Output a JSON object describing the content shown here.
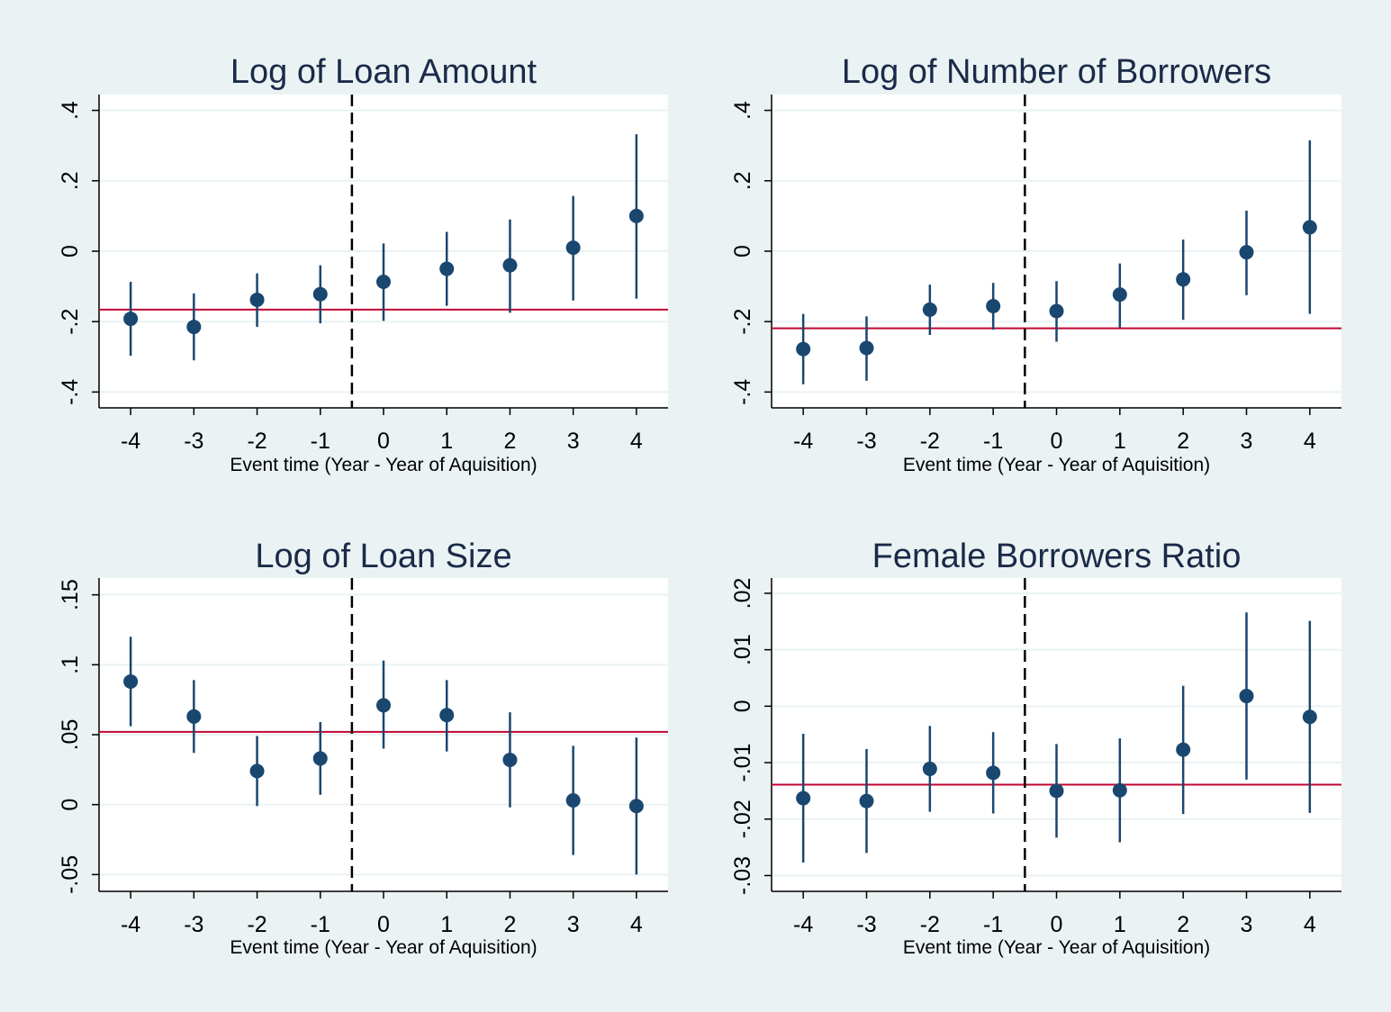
{
  "style": {
    "background": "#eaf2f3",
    "plot_background": "#ffffff",
    "grid_color": "#eaf2f3",
    "marker_color": "#1a476f",
    "reference_line_color": "#c10534",
    "title_color": "#1a2a48"
  },
  "chart_data": [
    {
      "type": "scatter",
      "title": "Log of Loan Amount",
      "xlabel": "Event time (Year - Year of Aquisition)",
      "ylabel": "",
      "x": [
        -4,
        -3,
        -2,
        -1,
        0,
        1,
        2,
        3,
        4
      ],
      "xticks": [
        "-4",
        "-3",
        "-2",
        "-1",
        "0",
        "1",
        "2",
        "3",
        "4"
      ],
      "xlim": [
        -4.5,
        4.5
      ],
      "yticks": [
        -0.4,
        -0.2,
        0,
        0.2,
        0.4
      ],
      "ytick_labels": [
        "-.4",
        "-.2",
        "0",
        ".2",
        ".4"
      ],
      "ylim": [
        -0.445,
        0.445
      ],
      "estimates": [
        -0.192,
        -0.215,
        -0.138,
        -0.122,
        -0.087,
        -0.05,
        -0.04,
        0.01,
        0.1
      ],
      "ci_lower": [
        -0.297,
        -0.31,
        -0.215,
        -0.205,
        -0.198,
        -0.155,
        -0.175,
        -0.14,
        -0.135
      ],
      "ci_upper": [
        -0.087,
        -0.12,
        -0.063,
        -0.04,
        0.022,
        0.055,
        0.09,
        0.157,
        0.332
      ],
      "reference_y": -0.166,
      "vline_x": -0.5,
      "grid": true
    },
    {
      "type": "scatter",
      "title": "Log of Number of Borrowers",
      "xlabel": "Event time (Year - Year of Aquisition)",
      "ylabel": "",
      "x": [
        -4,
        -3,
        -2,
        -1,
        0,
        1,
        2,
        3,
        4
      ],
      "xticks": [
        "-4",
        "-3",
        "-2",
        "-1",
        "0",
        "1",
        "2",
        "3",
        "4"
      ],
      "xlim": [
        -4.5,
        4.5
      ],
      "yticks": [
        -0.4,
        -0.2,
        0,
        0.2,
        0.4
      ],
      "ytick_labels": [
        "-.4",
        "-.2",
        "0",
        ".2",
        ".4"
      ],
      "ylim": [
        -0.445,
        0.445
      ],
      "estimates": [
        -0.278,
        -0.275,
        -0.166,
        -0.156,
        -0.17,
        -0.123,
        -0.08,
        -0.003,
        0.068
      ],
      "ci_lower": [
        -0.378,
        -0.368,
        -0.238,
        -0.223,
        -0.257,
        -0.217,
        -0.195,
        -0.125,
        -0.178
      ],
      "ci_upper": [
        -0.178,
        -0.185,
        -0.095,
        -0.09,
        -0.085,
        -0.035,
        0.033,
        0.115,
        0.315
      ],
      "reference_y": -0.219,
      "vline_x": -0.5,
      "grid": true
    },
    {
      "type": "scatter",
      "title": "Log of Loan Size",
      "xlabel": "Event time (Year - Year of Aquisition)",
      "ylabel": "",
      "x": [
        -4,
        -3,
        -2,
        -1,
        0,
        1,
        2,
        3,
        4
      ],
      "xticks": [
        "-4",
        "-3",
        "-2",
        "-1",
        "0",
        "1",
        "2",
        "3",
        "4"
      ],
      "xlim": [
        -4.5,
        4.5
      ],
      "yticks": [
        -0.05,
        0,
        0.05,
        0.1,
        0.15
      ],
      "ytick_labels": [
        "-.05",
        "0",
        ".05",
        ".1",
        ".15"
      ],
      "ylim": [
        -0.062,
        0.162
      ],
      "estimates": [
        0.088,
        0.063,
        0.024,
        0.033,
        0.071,
        0.064,
        0.032,
        0.003,
        -0.001
      ],
      "ci_lower": [
        0.056,
        0.037,
        -0.001,
        0.007,
        0.04,
        0.038,
        -0.002,
        -0.036,
        -0.05
      ],
      "ci_upper": [
        0.12,
        0.089,
        0.049,
        0.059,
        0.103,
        0.089,
        0.066,
        0.042,
        0.048
      ],
      "reference_y": 0.052,
      "vline_x": -0.5,
      "grid": true
    },
    {
      "type": "scatter",
      "title": "Female Borrowers Ratio",
      "xlabel": "Event time (Year - Year of Aquisition)",
      "ylabel": "",
      "x": [
        -4,
        -3,
        -2,
        -1,
        0,
        1,
        2,
        3,
        4
      ],
      "xticks": [
        "-4",
        "-3",
        "-2",
        "-1",
        "0",
        "1",
        "2",
        "3",
        "4"
      ],
      "xlim": [
        -4.5,
        4.5
      ],
      "yticks": [
        -0.03,
        -0.02,
        -0.01,
        0,
        0.01,
        0.02
      ],
      "ytick_labels": [
        "-.03",
        "-.02",
        "-.01",
        "0",
        ".01",
        ".02"
      ],
      "ylim": [
        -0.0328,
        0.0227
      ],
      "estimates": [
        -0.0163,
        -0.0168,
        -0.0111,
        -0.0118,
        -0.015,
        -0.0149,
        -0.0077,
        0.0018,
        -0.0019
      ],
      "ci_lower": [
        -0.0277,
        -0.026,
        -0.0187,
        -0.019,
        -0.0233,
        -0.0241,
        -0.0191,
        -0.013,
        -0.0189
      ],
      "ci_upper": [
        -0.0049,
        -0.0076,
        -0.0035,
        -0.0046,
        -0.0067,
        -0.0057,
        0.0036,
        0.0166,
        0.0151
      ],
      "reference_y": -0.0139,
      "vline_x": -0.5,
      "grid": true
    }
  ]
}
